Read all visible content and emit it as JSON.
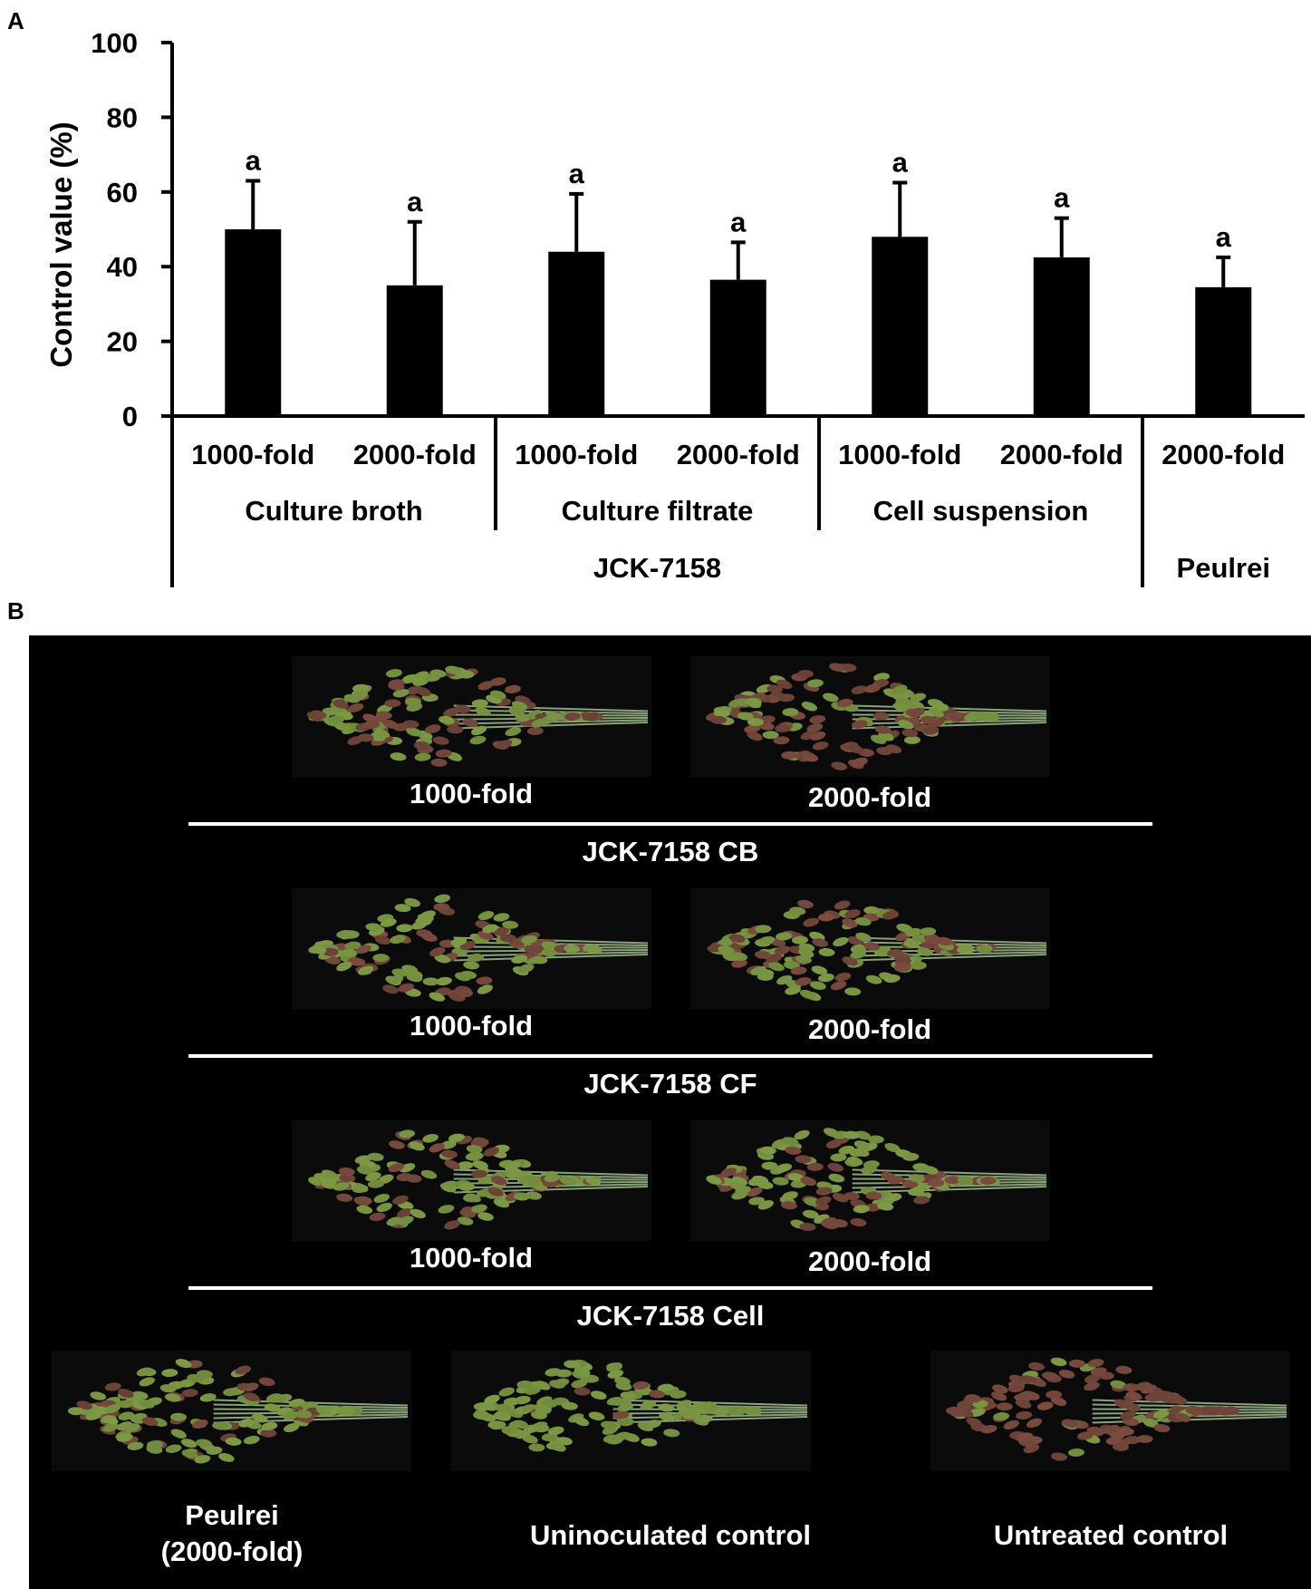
{
  "panel_labels": {
    "a": "A",
    "b": "B"
  },
  "chart_data": {
    "type": "bar",
    "ylabel": "Control value (%)",
    "ylim": [
      0,
      100
    ],
    "yticks": [
      "0",
      "20",
      "40",
      "60",
      "80",
      "100"
    ],
    "categories": [
      "1000-fold",
      "2000-fold",
      "1000-fold",
      "2000-fold",
      "1000-fold",
      "2000-fold",
      "2000-fold"
    ],
    "values": [
      50,
      35,
      44,
      36.5,
      48,
      42.5,
      34.5
    ],
    "errors": [
      13,
      17,
      15.5,
      10,
      14.5,
      10.5,
      8
    ],
    "significance": [
      "a",
      "a",
      "a",
      "a",
      "a",
      "a",
      "a"
    ],
    "bar_color": "#000000",
    "groups": [
      {
        "label": "Culture broth",
        "span": [
          0,
          1
        ]
      },
      {
        "label": "Culture filtrate",
        "span": [
          2,
          3
        ]
      },
      {
        "label": "Cell suspension",
        "span": [
          4,
          5
        ]
      }
    ],
    "supergroups": [
      {
        "label": "JCK-7158",
        "span": [
          0,
          5
        ]
      },
      {
        "label": "Peulrei",
        "span": [
          6,
          6
        ]
      }
    ],
    "grid": false,
    "legend": "none"
  },
  "photo_panel": {
    "background": "#000000",
    "grain_color_healthy": "#7f9a45",
    "grain_color_diseased": "#7a4b3e",
    "rows": [
      {
        "labels": [
          "1000-fold",
          "2000-fold"
        ],
        "group": "JCK-7158 CB"
      },
      {
        "labels": [
          "1000-fold",
          "2000-fold"
        ],
        "group": "JCK-7158 CF"
      },
      {
        "labels": [
          "1000-fold",
          "2000-fold"
        ],
        "group": "JCK-7158 Cell"
      }
    ],
    "bottom": [
      {
        "label_lines": [
          "Peulrei",
          "(2000-fold)"
        ],
        "infection": 0.25
      },
      {
        "label_lines": [
          "Uninoculated control"
        ],
        "infection": 0.05
      },
      {
        "label_lines": [
          "Untreated control"
        ],
        "infection": 0.85
      }
    ]
  }
}
